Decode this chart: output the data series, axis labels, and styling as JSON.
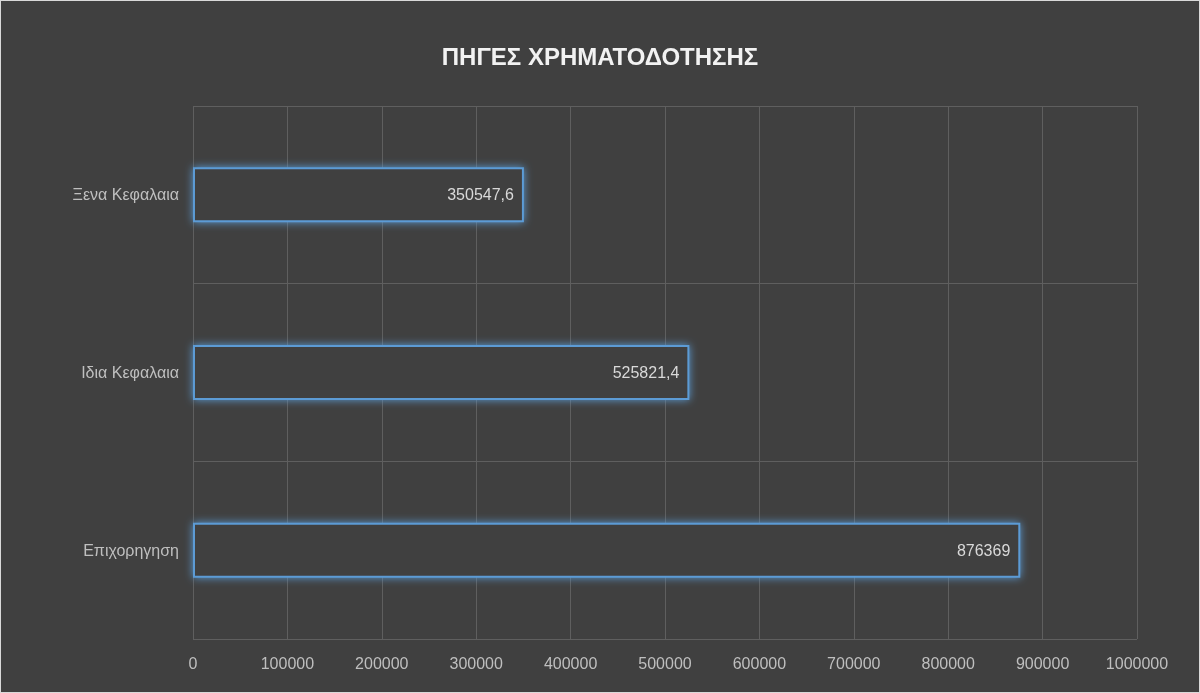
{
  "chart_data": {
    "type": "bar",
    "orientation": "horizontal",
    "title": "ΠΗΓΕΣ ΧΡΗΜΑΤΟΔΟΤΗΣΗΣ",
    "categories": [
      "Ξενα Κεφαλαια",
      "Ιδια Κεφαλαια",
      "Επιχορηγηση"
    ],
    "values": [
      350547.6,
      525821.4,
      876369
    ],
    "value_labels": [
      "350547,6",
      "525821,4",
      "876369"
    ],
    "color": "#5b9bd5",
    "xlim": [
      0,
      1000000
    ],
    "xticks": [
      0,
      100000,
      200000,
      300000,
      400000,
      500000,
      600000,
      700000,
      800000,
      900000,
      1000000
    ],
    "grid": true
  }
}
